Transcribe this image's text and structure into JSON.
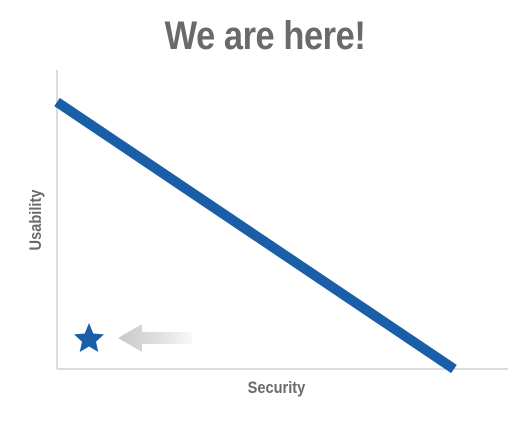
{
  "title": "We are here!",
  "axes": {
    "x_label": "Security",
    "y_label": "Usability"
  },
  "colors": {
    "trade_off_line": "#1a5ea8",
    "marker": "#1a5ea8",
    "arrow": "#d0d0d0",
    "axes": "#cfcfcf",
    "text": "#6a6a6a"
  },
  "icons": {
    "marker": "star-icon",
    "pointer": "arrow-left-icon"
  }
}
